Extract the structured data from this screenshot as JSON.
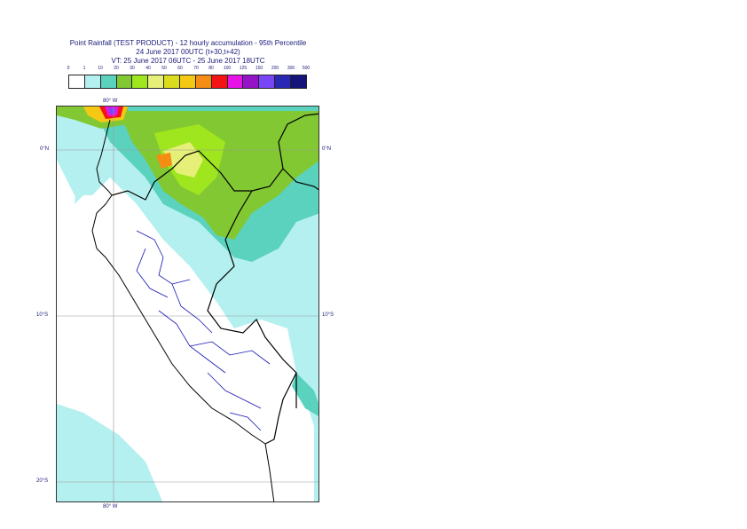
{
  "title": {
    "line1": "Point Rainfall (TEST PRODUCT) - 12 hourly accumulation - 95th Percentile",
    "line2": "24 June 2017 00UTC (t+30,t+42)",
    "line3": "VT: 25 June 2017 06UTC - 25 June 2017 18UTC"
  },
  "legend": {
    "labels": [
      "0",
      "1",
      "10",
      "20",
      "30",
      "40",
      "50",
      "60",
      "70",
      "80",
      "100",
      "125",
      "150",
      "200",
      "300",
      "500"
    ],
    "colors": [
      "#ffffff",
      "#b4f0f0",
      "#5ad2be",
      "#82c832",
      "#a0e61e",
      "#e6f078",
      "#dcdc1e",
      "#f5c814",
      "#f58c14",
      "#f51414",
      "#e614e6",
      "#9614c8",
      "#7846f5",
      "#2828b4",
      "#14147a"
    ]
  },
  "map": {
    "lon_label_top": "80° W",
    "lon_label_bottom": "80° W",
    "lat_labels_right": [
      "0°N",
      "10°S"
    ],
    "lat_labels_left": [
      "0°N",
      "10°S",
      "20°S"
    ]
  }
}
